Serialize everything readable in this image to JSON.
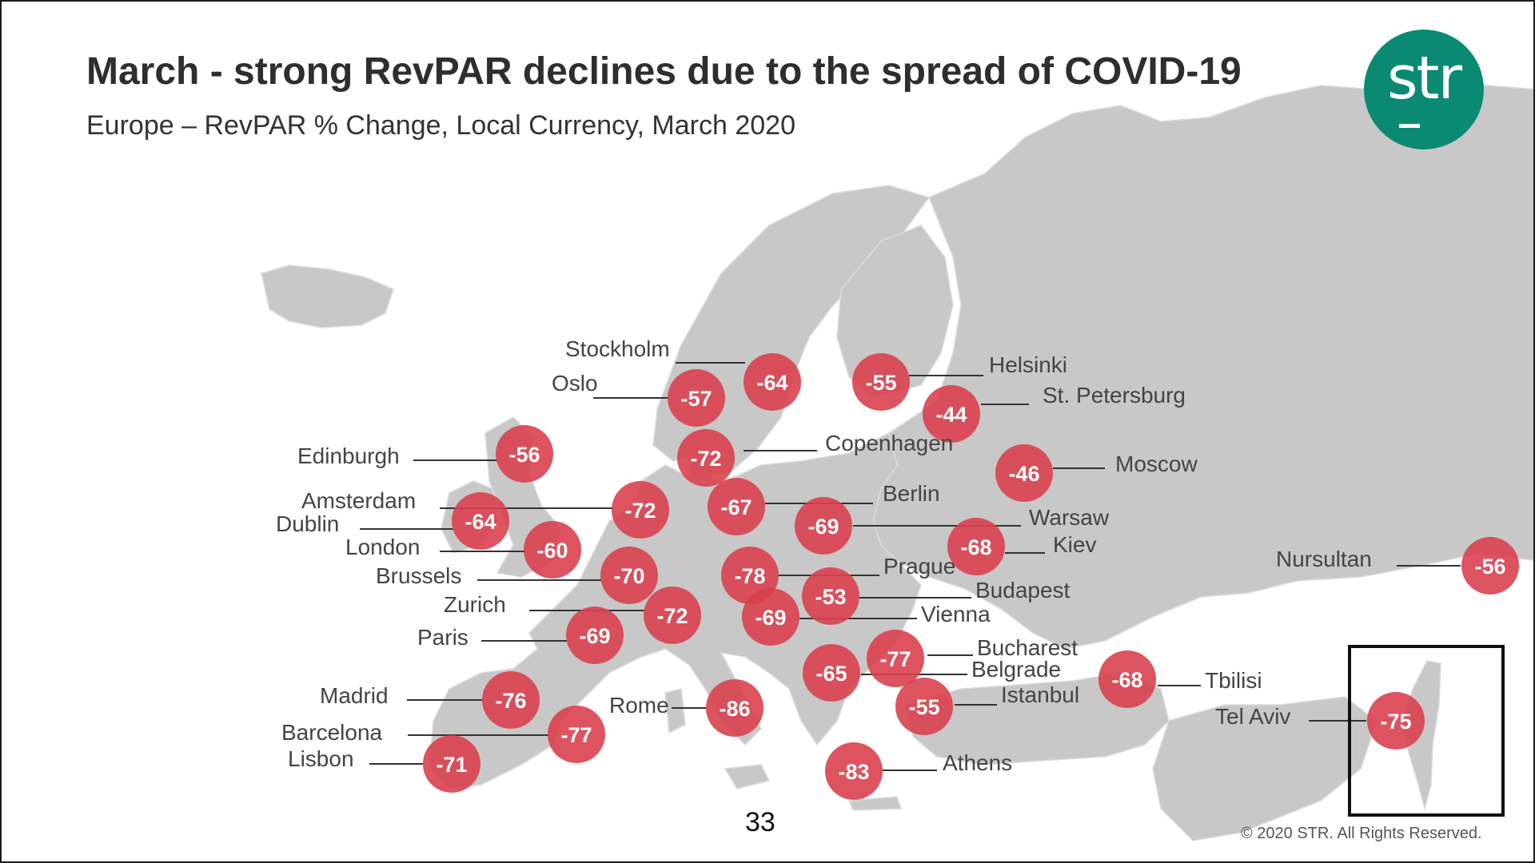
{
  "title": "March - strong RevPAR declines due to the spread of COVID-19",
  "subtitle": "Europe – RevPAR % Change, Local Currency, March 2020",
  "logo_text": "str",
  "page_number": "33",
  "copyright": "© 2020 STR. All Rights Reserved.",
  "colors": {
    "land": "#c8c8c8",
    "bubble": "#d9404e",
    "logo": "#0a8a72"
  },
  "cities": [
    {
      "name": "Stockholm",
      "value": "-64"
    },
    {
      "name": "Oslo",
      "value": "-57"
    },
    {
      "name": "Helsinki",
      "value": "-55"
    },
    {
      "name": "St. Petersburg",
      "value": "-44"
    },
    {
      "name": "Copenhagen",
      "value": "-72"
    },
    {
      "name": "Edinburgh",
      "value": "-56"
    },
    {
      "name": "Moscow",
      "value": "-46"
    },
    {
      "name": "Amsterdam",
      "value": "-72"
    },
    {
      "name": "Dublin",
      "value": "-64"
    },
    {
      "name": "Berlin",
      "value": "-67"
    },
    {
      "name": "Warsaw",
      "value": "-69"
    },
    {
      "name": "London",
      "value": "-60"
    },
    {
      "name": "Kiev",
      "value": "-68"
    },
    {
      "name": "Brussels",
      "value": "-70"
    },
    {
      "name": "Prague",
      "value": "-78"
    },
    {
      "name": "Budapest",
      "value": "-53"
    },
    {
      "name": "Zurich",
      "value": "-72"
    },
    {
      "name": "Vienna",
      "value": "-69"
    },
    {
      "name": "Paris",
      "value": "-69"
    },
    {
      "name": "Nursultan",
      "value": "-56"
    },
    {
      "name": "Bucharest",
      "value": "-77"
    },
    {
      "name": "Belgrade",
      "value": "-65"
    },
    {
      "name": "Tbilisi",
      "value": "-68"
    },
    {
      "name": "Madrid",
      "value": "-76"
    },
    {
      "name": "Istanbul",
      "value": "-55"
    },
    {
      "name": "Rome",
      "value": "-86"
    },
    {
      "name": "Tel Aviv",
      "value": "-75"
    },
    {
      "name": "Barcelona",
      "value": "-77"
    },
    {
      "name": "Lisbon",
      "value": "-71"
    },
    {
      "name": "Athens",
      "value": "-83"
    }
  ]
}
